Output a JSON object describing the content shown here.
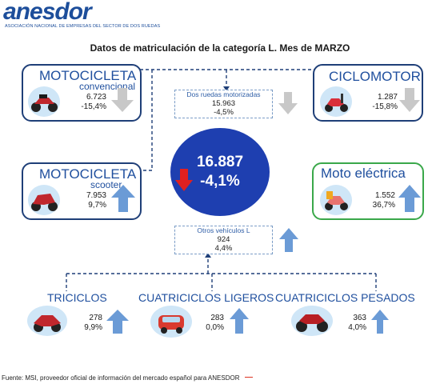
{
  "logo": {
    "name": "anesdor",
    "tagline": "ASOCIACIÓN NACIONAL DE EMPRESAS DEL SECTOR DE DOS RUEDAS"
  },
  "title": "Datos de matriculación de la categoría L. Mes de MARZO",
  "total": {
    "value": "16.887",
    "change": "-4,1%"
  },
  "dos_ruedas": {
    "label": "Dos ruedas motorizadas",
    "value": "15.963",
    "change": "-4,5%"
  },
  "otros": {
    "label": "Otros vehículos L",
    "value": "924",
    "change": "4,4%"
  },
  "moto_conv": {
    "title": "MOTOCICLETA",
    "subtitle": "convencional",
    "value": "6.723",
    "change": "-15,4%",
    "trend": "down"
  },
  "ciclomotor": {
    "title": "CICLOMOTOR",
    "value": "1.287",
    "change": "-15,8%",
    "trend": "down"
  },
  "moto_scooter": {
    "title": "MOTOCICLETA",
    "subtitle": "scooter",
    "value": "7.953",
    "change": "9,7%",
    "trend": "up"
  },
  "moto_electrica": {
    "title": "Moto eléctrica",
    "value": "1.552",
    "change": "36,7%",
    "trend": "up"
  },
  "triciclos": {
    "title": "TRICICLOS",
    "value": "278",
    "change": "9,9%",
    "trend": "up"
  },
  "cuadri_ligeros": {
    "title": "CUATRICICLOS LIGEROS",
    "value": "283",
    "change": "0,0%",
    "trend": "up"
  },
  "cuadri_pesados": {
    "title": "CUATRICICLOS PESADOS",
    "value": "363",
    "change": "4,0%",
    "trend": "up"
  },
  "footer": "Fuente: MSI, proveedor oficial de información del mercado español para ANESDOR",
  "colors": {
    "brand": "#1d4e9b",
    "card_border": "#1f3f78",
    "green_border": "#3aa84a",
    "circle": "#1e3fb0",
    "arrow_up": "#6b9bd6",
    "arrow_down": "#c8c8c8",
    "arrow_red": "#e02020"
  }
}
